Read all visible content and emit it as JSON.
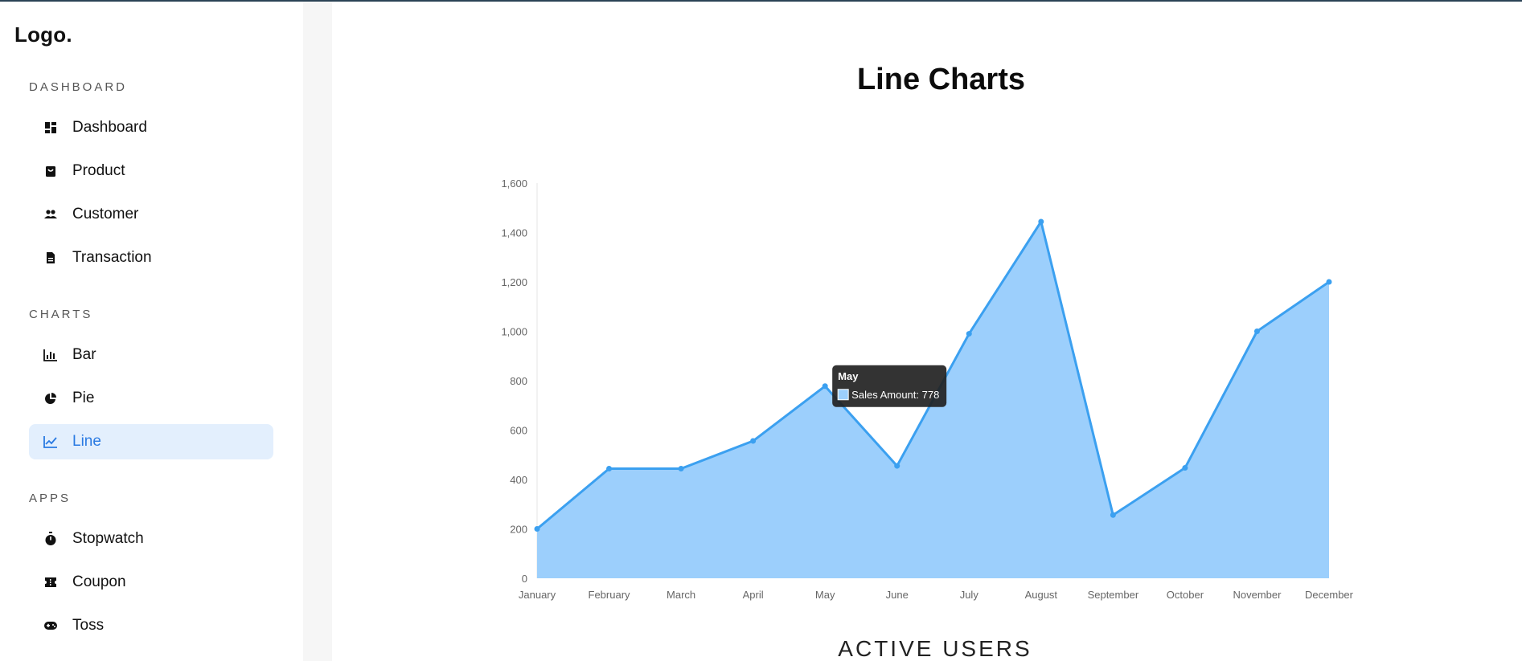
{
  "sidebar": {
    "logo": "Logo.",
    "sections": [
      {
        "title": "DASHBOARD",
        "items": [
          {
            "label": "Dashboard",
            "icon": "dashboard-icon"
          },
          {
            "label": "Product",
            "icon": "shopping-bag-icon"
          },
          {
            "label": "Customer",
            "icon": "people-icon"
          },
          {
            "label": "Transaction",
            "icon": "receipt-icon"
          }
        ]
      },
      {
        "title": "CHARTS",
        "items": [
          {
            "label": "Bar",
            "icon": "bar-chart-icon"
          },
          {
            "label": "Pie",
            "icon": "pie-chart-icon"
          },
          {
            "label": "Line",
            "icon": "line-chart-icon",
            "active": true
          }
        ]
      },
      {
        "title": "APPS",
        "items": [
          {
            "label": "Stopwatch",
            "icon": "stopwatch-icon"
          },
          {
            "label": "Coupon",
            "icon": "coupon-icon"
          },
          {
            "label": "Toss",
            "icon": "game-controller-icon"
          }
        ]
      }
    ]
  },
  "main": {
    "title": "Line Charts",
    "chart_subtitle": "ACTIVE USERS"
  },
  "colors": {
    "line": "#3ba0f0",
    "fill": "#9ccffc",
    "active_bg": "#e3effd",
    "active_text": "#2a7ae2"
  },
  "chart_data": {
    "type": "area",
    "categories": [
      "January",
      "February",
      "March",
      "April",
      "May",
      "June",
      "July",
      "August",
      "September",
      "October",
      "November",
      "December"
    ],
    "series": [
      {
        "name": "Sales Amount",
        "values": [
          200,
          444,
          444,
          556,
          778,
          455,
          990,
          1444,
          256,
          447,
          1000,
          1200
        ]
      }
    ],
    "ylim": [
      0,
      1600
    ],
    "yticks": [
      "0",
      "200",
      "400",
      "600",
      "800",
      "1,000",
      "1,200",
      "1,400",
      "1,600"
    ],
    "grid": false,
    "tooltip": {
      "title": "May",
      "text": "Sales Amount: 778"
    }
  }
}
